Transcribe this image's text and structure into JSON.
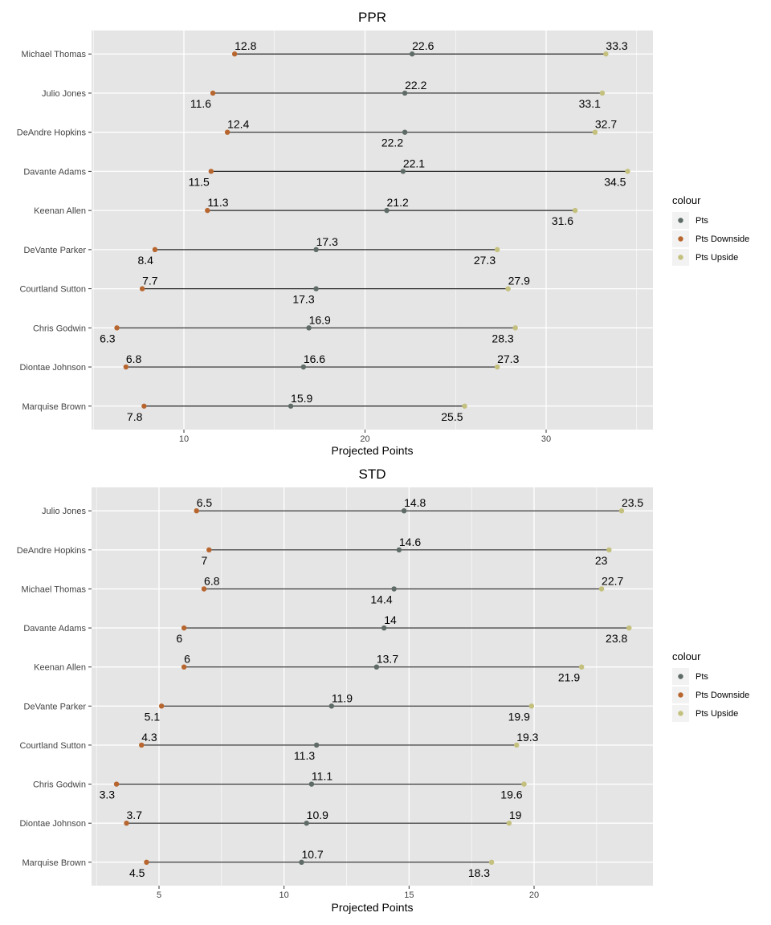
{
  "colors": {
    "pts": "#5E6B66",
    "downside": "#B8662F",
    "upside": "#C4C07D",
    "panel": "#E5E5E5",
    "grid": "#FFFFFF",
    "segment": "#222222"
  },
  "legend": {
    "title": "colour",
    "items": [
      {
        "key": "pts",
        "label": "Pts"
      },
      {
        "key": "downside",
        "label": "Pts Downside"
      },
      {
        "key": "upside",
        "label": "Pts Upside"
      }
    ]
  },
  "chart_data": [
    {
      "type": "dumbbell",
      "title": "PPR",
      "xlabel": "Projected Points",
      "ylabel": "",
      "xlim": [
        4.96,
        34.5
      ],
      "xticks": [
        10,
        20,
        30
      ],
      "grid": true,
      "legend_position": "right",
      "players": [
        {
          "name": "Michael Thomas",
          "downside": 12.8,
          "pts": 22.6,
          "upside": 33.3
        },
        {
          "name": "Julio Jones",
          "downside": 11.6,
          "pts": 22.2,
          "upside": 33.1
        },
        {
          "name": "DeAndre Hopkins",
          "downside": 12.4,
          "pts": 22.2,
          "upside": 32.7
        },
        {
          "name": "Davante Adams",
          "downside": 11.5,
          "pts": 22.1,
          "upside": 34.5
        },
        {
          "name": "Keenan Allen",
          "downside": 11.3,
          "pts": 21.2,
          "upside": 31.6
        },
        {
          "name": "DeVante Parker",
          "downside": 8.4,
          "pts": 17.3,
          "upside": 27.3
        },
        {
          "name": "Courtland Sutton",
          "downside": 7.7,
          "pts": 17.3,
          "upside": 27.9
        },
        {
          "name": "Chris Godwin",
          "downside": 6.3,
          "pts": 16.9,
          "upside": 28.3
        },
        {
          "name": "Diontae Johnson",
          "downside": 6.8,
          "pts": 16.6,
          "upside": 27.3
        },
        {
          "name": "Marquise Brown",
          "downside": 7.8,
          "pts": 15.9,
          "upside": 25.5
        }
      ]
    },
    {
      "type": "dumbbell",
      "title": "STD",
      "xlabel": "Projected Points",
      "ylabel": "",
      "xlim": [
        2.8,
        23.8
      ],
      "xticks": [
        5,
        10,
        15,
        20
      ],
      "grid": true,
      "legend_position": "right",
      "players": [
        {
          "name": "Julio Jones",
          "downside": 6.5,
          "pts": 14.8,
          "upside": 23.5
        },
        {
          "name": "DeAndre Hopkins",
          "downside": 7,
          "pts": 14.6,
          "upside": 23
        },
        {
          "name": "Michael Thomas",
          "downside": 6.8,
          "pts": 14.4,
          "upside": 22.7
        },
        {
          "name": "Davante Adams",
          "downside": 6,
          "pts": 14,
          "upside": 23.8
        },
        {
          "name": "Keenan Allen",
          "downside": 6,
          "pts": 13.7,
          "upside": 21.9
        },
        {
          "name": "DeVante Parker",
          "downside": 5.1,
          "pts": 11.9,
          "upside": 19.9
        },
        {
          "name": "Courtland Sutton",
          "downside": 4.3,
          "pts": 11.3,
          "upside": 19.3
        },
        {
          "name": "Chris Godwin",
          "downside": 3.3,
          "pts": 11.1,
          "upside": 19.6
        },
        {
          "name": "Diontae Johnson",
          "downside": 3.7,
          "pts": 10.9,
          "upside": 19
        },
        {
          "name": "Marquise Brown",
          "downside": 4.5,
          "pts": 10.7,
          "upside": 18.3
        }
      ]
    }
  ]
}
